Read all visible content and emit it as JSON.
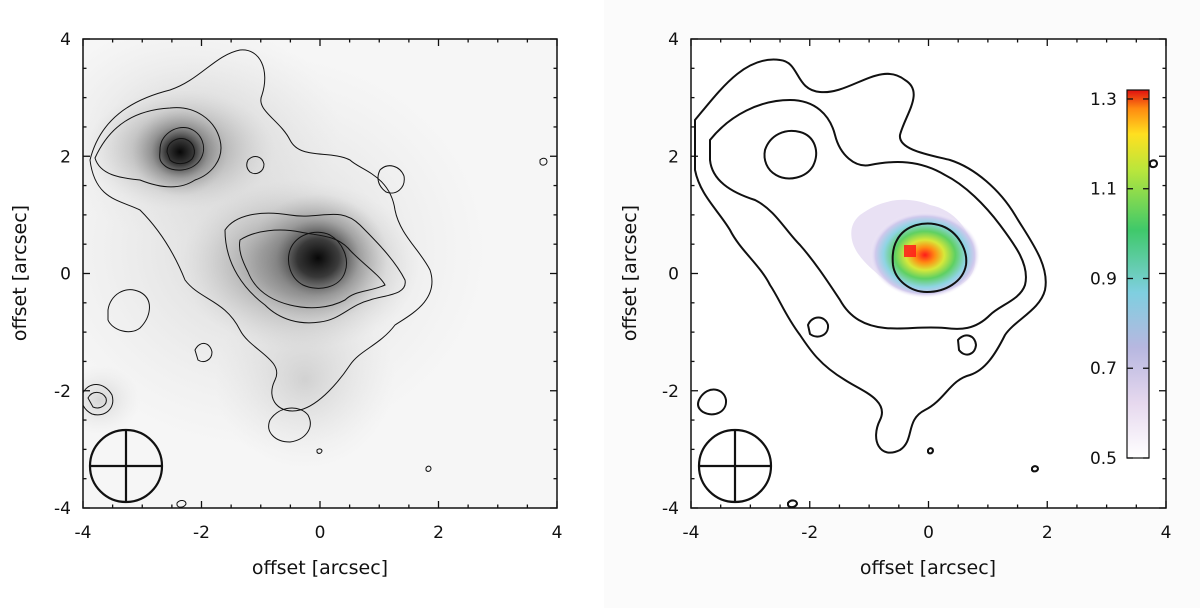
{
  "chart_data": [
    {
      "type": "heatmap",
      "colormap": "grayscale",
      "xlabel": "offset [arcsec]",
      "ylabel": "offset [arcsec]",
      "xlim": [
        -4,
        4
      ],
      "ylim": [
        -4,
        4
      ],
      "x_ticks": [
        "-4",
        "-2",
        "0",
        "2",
        "4"
      ],
      "y_ticks": [
        "-4",
        "-2",
        "0",
        "2",
        "4"
      ],
      "sources": [
        {
          "x": -2.3,
          "y": 2.1,
          "peak": 0.95
        },
        {
          "x": 0.0,
          "y": 0.3,
          "peak": 1.0
        }
      ],
      "beam": {
        "x": -3.25,
        "y": -3.25,
        "diameter": 1.2
      },
      "contour_levels": 4
    },
    {
      "type": "heatmap",
      "colormap": "rainbow",
      "xlabel": "offset [arcsec]",
      "ylabel": "offset [arcsec]",
      "xlim": [
        -4,
        4
      ],
      "ylim": [
        -4,
        4
      ],
      "x_ticks": [
        "-4",
        "-2",
        "0",
        "2",
        "4"
      ],
      "y_ticks": [
        "-4",
        "-2",
        "0",
        "2",
        "4"
      ],
      "colorbar": {
        "ticks": [
          "0.5",
          "0.7",
          "0.9",
          "1.1",
          "1.3"
        ],
        "range": [
          0.5,
          1.32
        ]
      },
      "peak": {
        "x": -0.25,
        "y": 0.4,
        "value": 1.3
      },
      "beam": {
        "x": -3.25,
        "y": -3.25,
        "diameter": 1.2
      },
      "contour_levels": 3
    }
  ]
}
